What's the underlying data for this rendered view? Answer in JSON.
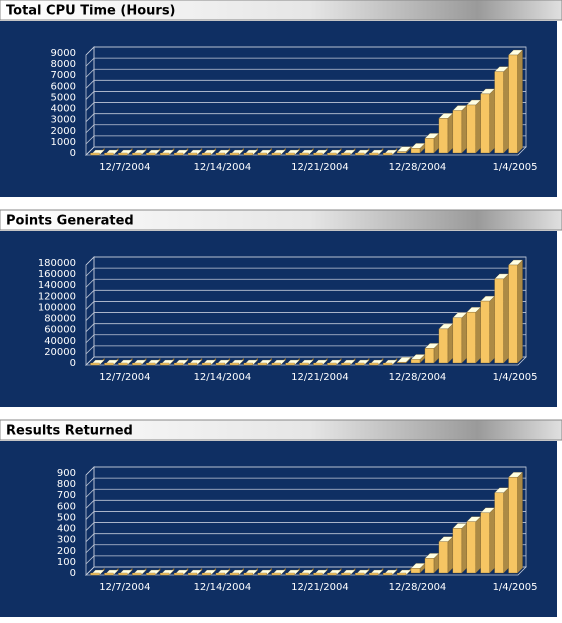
{
  "chart_data": [
    {
      "type": "bar",
      "title": "Total CPU Time (Hours)",
      "categories": [
        null,
        null,
        "12/7/2004",
        null,
        null,
        null,
        null,
        null,
        null,
        "12/14/2004",
        null,
        null,
        null,
        null,
        null,
        null,
        "12/21/2004",
        null,
        null,
        null,
        null,
        null,
        null,
        "12/28/2004",
        null,
        null,
        null,
        null,
        null,
        null,
        "1/4/2005"
      ],
      "values": [
        0,
        0,
        0,
        0,
        0,
        0,
        0,
        0,
        0,
        0,
        0,
        0,
        0,
        0,
        0,
        0,
        0,
        0,
        0,
        0,
        0,
        0,
        300,
        600,
        1500,
        3300,
        4000,
        4500,
        5500,
        7500,
        9000
      ],
      "ylim": [
        0,
        9000
      ],
      "yticks": [
        0,
        1000,
        2000,
        3000,
        4000,
        5000,
        6000,
        7000,
        8000,
        9000
      ],
      "color": "#f6c563"
    },
    {
      "type": "bar",
      "title": "Points Generated",
      "categories": [
        null,
        null,
        "12/7/2004",
        null,
        null,
        null,
        null,
        null,
        null,
        "12/14/2004",
        null,
        null,
        null,
        null,
        null,
        null,
        "12/21/2004",
        null,
        null,
        null,
        null,
        null,
        null,
        "12/28/2004",
        null,
        null,
        null,
        null,
        null,
        null,
        "1/4/2005"
      ],
      "values": [
        0,
        0,
        0,
        0,
        0,
        0,
        0,
        0,
        0,
        0,
        0,
        0,
        0,
        0,
        0,
        0,
        0,
        0,
        0,
        0,
        0,
        0,
        5000,
        10000,
        30000,
        65000,
        85000,
        95000,
        115000,
        155000,
        180000
      ],
      "ylim": [
        0,
        180000
      ],
      "yticks": [
        0,
        20000,
        40000,
        60000,
        80000,
        100000,
        120000,
        140000,
        160000,
        180000
      ],
      "color": "#f6c563"
    },
    {
      "type": "bar",
      "title": "Results Returned",
      "categories": [
        null,
        null,
        "12/7/2004",
        null,
        null,
        null,
        null,
        null,
        null,
        "12/14/2004",
        null,
        null,
        null,
        null,
        null,
        null,
        "12/21/2004",
        null,
        null,
        null,
        null,
        null,
        null,
        "12/28/2004",
        null,
        null,
        null,
        null,
        null,
        null,
        "1/4/2005"
      ],
      "values": [
        0,
        0,
        0,
        0,
        0,
        0,
        0,
        0,
        0,
        0,
        0,
        0,
        0,
        0,
        0,
        0,
        0,
        0,
        0,
        0,
        0,
        0,
        0,
        60,
        150,
        300,
        420,
        480,
        560,
        740,
        880
      ],
      "ylim": [
        0,
        900
      ],
      "yticks": [
        0,
        100,
        200,
        300,
        400,
        500,
        600,
        700,
        800,
        900
      ],
      "color": "#f6c563"
    }
  ]
}
